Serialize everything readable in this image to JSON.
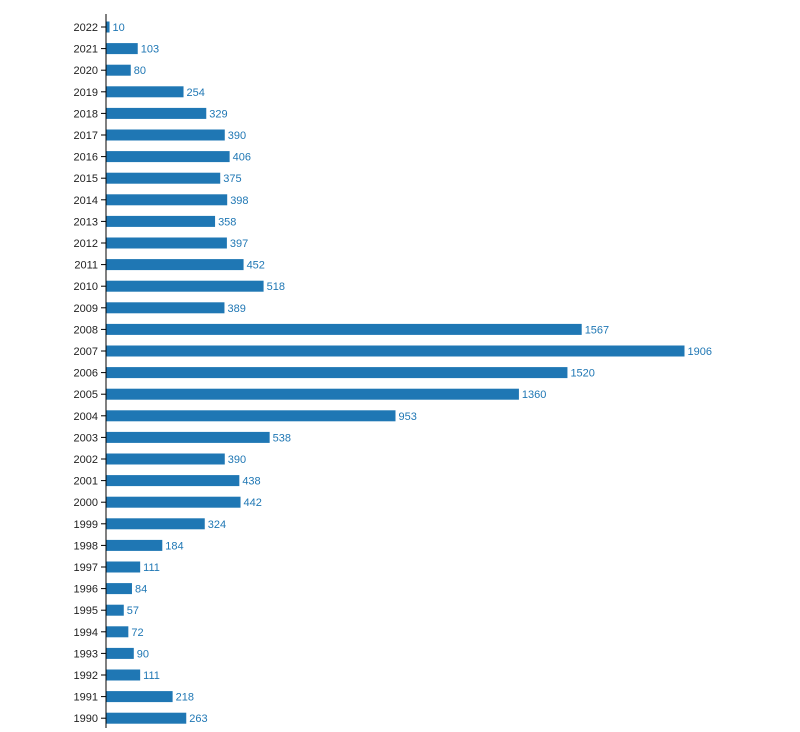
{
  "chart_data": {
    "type": "bar",
    "orientation": "horizontal",
    "categories": [
      "2022",
      "2021",
      "2020",
      "2019",
      "2018",
      "2017",
      "2016",
      "2015",
      "2014",
      "2013",
      "2012",
      "2011",
      "2010",
      "2009",
      "2008",
      "2007",
      "2006",
      "2005",
      "2004",
      "2003",
      "2002",
      "2001",
      "2000",
      "1999",
      "1998",
      "1997",
      "1996",
      "1995",
      "1994",
      "1993",
      "1992",
      "1991",
      "1990"
    ],
    "values": [
      10,
      103,
      80,
      254,
      329,
      390,
      406,
      375,
      398,
      358,
      397,
      452,
      518,
      389,
      1567,
      1906,
      1520,
      1360,
      953,
      538,
      390,
      438,
      442,
      324,
      184,
      111,
      84,
      57,
      72,
      90,
      111,
      218,
      263
    ],
    "title": "",
    "xlabel": "",
    "ylabel": "",
    "xlim": [
      0,
      1906
    ],
    "grid": false,
    "legend": "none",
    "bar_color": "#1f77b4",
    "label_color": "#1f77b4",
    "axis_color": "#000000"
  }
}
